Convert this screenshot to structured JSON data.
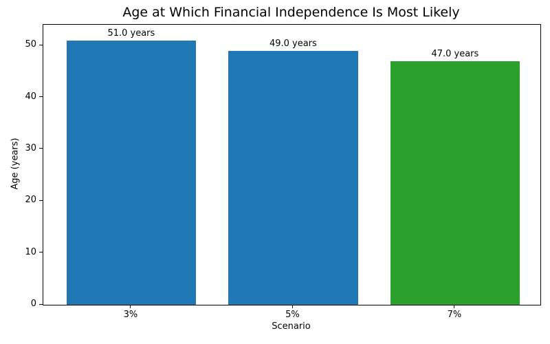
{
  "chart_data": {
    "type": "bar",
    "title": "Age at Which Financial Independence Is Most Likely",
    "xlabel": "Scenario",
    "ylabel": "Age (years)",
    "categories": [
      "3%",
      "5%",
      "7%"
    ],
    "values": [
      51.0,
      49.0,
      47.0
    ],
    "bar_labels": [
      "51.0 years",
      "49.0 years",
      "47.0 years"
    ],
    "bar_colors": [
      "#1f77b4",
      "#1f77b4",
      "#2ca02c"
    ],
    "yticks": [
      0,
      10,
      20,
      30,
      40,
      50
    ],
    "ylim": [
      0,
      54
    ],
    "grid": false,
    "legend_position": "none",
    "background_color": "#ffffff",
    "spine_color": "#000000"
  }
}
